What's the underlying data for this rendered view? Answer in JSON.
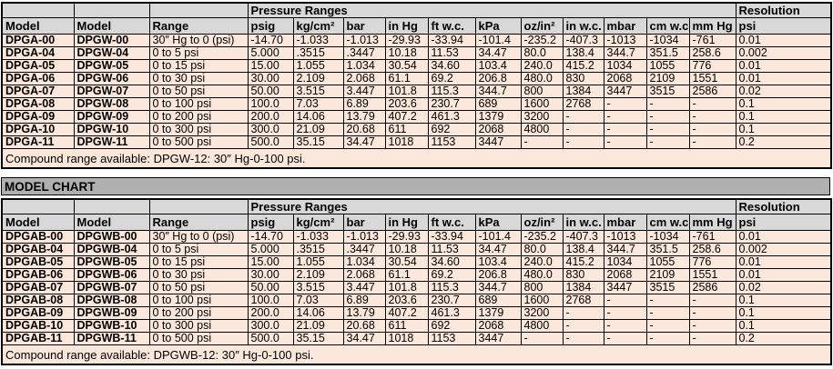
{
  "colors": {
    "row_bg": "#fce8da",
    "header_bg": "#d8d8d8",
    "band_bg": "#b0b0b0",
    "border": "#000000"
  },
  "tables": [
    {
      "pressure_group_label": "Pressure Ranges",
      "resolution_group_label": "Resolution",
      "columns": [
        "Model",
        "Model",
        "Range",
        "psig",
        "kg/cm²",
        "bar",
        "in Hg",
        "ft w.c.",
        "kPa",
        "oz/in²",
        "in w.c.",
        "mbar",
        "cm w.c.",
        "mm Hg",
        "psi"
      ],
      "rows": [
        {
          "model_a": "DPGA-00",
          "model_b": "DPGW-00",
          "range": "30″ Hg to 0 (psi)",
          "values": [
            "-14.70",
            "-1.033",
            "-1.013",
            "-29.93",
            "-33.94",
            "-101.4",
            "-235.2",
            "-407.3",
            "-1013",
            "-1034",
            "-761",
            "0.01"
          ]
        },
        {
          "model_a": "DPGA-04",
          "model_b": "DPGW-04",
          "range": "0 to 5 psi",
          "values": [
            "5.000",
            ".3515",
            ".3447",
            "10.18",
            "11.53",
            "34.47",
            "80.0",
            "138.4",
            "344.7",
            "351.5",
            "258.6",
            "0.002"
          ]
        },
        {
          "model_a": "DPGA-05",
          "model_b": "DPGW-05",
          "range": "0 to 15 psi",
          "values": [
            "15.00",
            "1.055",
            "1.034",
            "30.54",
            "34.60",
            "103.4",
            "240.0",
            "415.2",
            "1034",
            "1055",
            "776",
            "0.01"
          ]
        },
        {
          "model_a": "DPGA-06",
          "model_b": "DPGW-06",
          "range": "0 to 30 psi",
          "values": [
            "30.00",
            "2.109",
            "2.068",
            "61.1",
            "69.2",
            "206.8",
            "480.0",
            "830",
            "2068",
            "2109",
            "1551",
            "0.01"
          ]
        },
        {
          "model_a": "DPGA-07",
          "model_b": "DPGW-07",
          "range": "0 to 50 psi",
          "values": [
            "50.00",
            "3.515",
            "3.447",
            "101.8",
            "115.3",
            "344.7",
            "800",
            "1384",
            "3447",
            "3515",
            "2586",
            "0.02"
          ]
        },
        {
          "model_a": "DPGA-08",
          "model_b": "DPGW-08",
          "range": "0 to 100 psi",
          "values": [
            "100.0",
            "7.03",
            "6.89",
            "203.6",
            "230.7",
            "689",
            "1600",
            "2768",
            "-",
            "-",
            "-",
            "0.1"
          ]
        },
        {
          "model_a": "DPGA-09",
          "model_b": "DPGW-09",
          "range": "0 to 200 psi",
          "values": [
            "200.0",
            "14.06",
            "13.79",
            "407.2",
            "461.3",
            "1379",
            "3200",
            "-",
            "-",
            "-",
            "-",
            "0.1"
          ]
        },
        {
          "model_a": "DPGA-10",
          "model_b": "DPGW-10",
          "range": "0 to 300 psi",
          "values": [
            "300.0",
            "21.09",
            "20.68",
            "611",
            "692",
            "2068",
            "4800",
            "-",
            "-",
            "-",
            "-",
            "0.1"
          ]
        },
        {
          "model_a": "DPGA-11",
          "model_b": "DPGW-11",
          "range": "0 to 500 psi",
          "values": [
            "500.0",
            "35.15",
            "34.47",
            "1018",
            "1153",
            "3447",
            "-",
            "-",
            "-",
            "-",
            "-",
            "0.2"
          ]
        }
      ],
      "footnote": "Compound range available: DPGW-12: 30″ Hg-0-100 psi."
    },
    {
      "band_title": "MODEL CHART",
      "pressure_group_label": "Pressure Ranges",
      "resolution_group_label": "Resolution",
      "columns": [
        "Model",
        "Model",
        "Range",
        "psig",
        "kg/cm²",
        "bar",
        "in Hg",
        "ft w.c.",
        "kPa",
        "oz/in²",
        "in w.c.",
        "mbar",
        "cm w.c.",
        "mm Hg",
        "psi"
      ],
      "rows": [
        {
          "model_a": "DPGAB-00",
          "model_b": "DPGWB-00",
          "range": "30″ Hg to 0 (psi)",
          "values": [
            "-14.70",
            "-1.033",
            "-1.013",
            "-29.93",
            "-33.94",
            "-101.4",
            "-235.2",
            "-407.3",
            "-1013",
            "-1034",
            "-761",
            "0.01"
          ]
        },
        {
          "model_a": "DPGAB-04",
          "model_b": "DPGWB-04",
          "range": "0 to 5 psi",
          "values": [
            "5.000",
            ".3515",
            ".3447",
            "10.18",
            "11.53",
            "34.47",
            "80.0",
            "138.4",
            "344.7",
            "351.5",
            "258.6",
            "0.002"
          ]
        },
        {
          "model_a": "DPGAB-05",
          "model_b": "DPGWB-05",
          "range": "0 to 15 psi",
          "values": [
            "15.00",
            "1.055",
            "1.034",
            "30.54",
            "34.60",
            "103.4",
            "240.0",
            "415.2",
            "1034",
            "1055",
            "776",
            "0.01"
          ]
        },
        {
          "model_a": "DPGAB-06",
          "model_b": "DPGWB-06",
          "range": "0 to 30 psi",
          "values": [
            "30.00",
            "2.109",
            "2.068",
            "61.1",
            "69.2",
            "206.8",
            "480.0",
            "830",
            "2068",
            "2109",
            "1551",
            "0.01"
          ]
        },
        {
          "model_a": "DPGAB-07",
          "model_b": "DPGWB-07",
          "range": "0 to 50 psi",
          "values": [
            "50.00",
            "3.515",
            "3.447",
            "101.8",
            "115.3",
            "344.7",
            "800",
            "1384",
            "3447",
            "3515",
            "2586",
            "0.02"
          ]
        },
        {
          "model_a": "DPGAB-08",
          "model_b": "DPGWB-08",
          "range": "0 to 100 psi",
          "values": [
            "100.0",
            "7.03",
            "6.89",
            "203.6",
            "230.7",
            "689",
            "1600",
            "2768",
            "-",
            "-",
            "-",
            "0.1"
          ]
        },
        {
          "model_a": "DPGAB-09",
          "model_b": "DPGWB-09",
          "range": "0 to 200 psi",
          "values": [
            "200.0",
            "14.06",
            "13.79",
            "407.2",
            "461.3",
            "1379",
            "3200",
            "-",
            "-",
            "-",
            "-",
            "0.1"
          ]
        },
        {
          "model_a": "DPGAB-10",
          "model_b": "DPGWB-10",
          "range": "0 to 300 psi",
          "values": [
            "300.0",
            "21.09",
            "20.68",
            "611",
            "692",
            "2068",
            "4800",
            "-",
            "-",
            "-",
            "-",
            "0.1"
          ]
        },
        {
          "model_a": "DPGAB-11",
          "model_b": "DPGWB-11",
          "range": "0 to 500 psi",
          "values": [
            "500.0",
            "35.15",
            "34.47",
            "1018",
            "1153",
            "3447",
            "-",
            "-",
            "-",
            "-",
            "-",
            "0.2"
          ]
        }
      ],
      "footnote": "Compound range available: DPGWB-12: 30″ Hg-0-100 psi."
    }
  ]
}
